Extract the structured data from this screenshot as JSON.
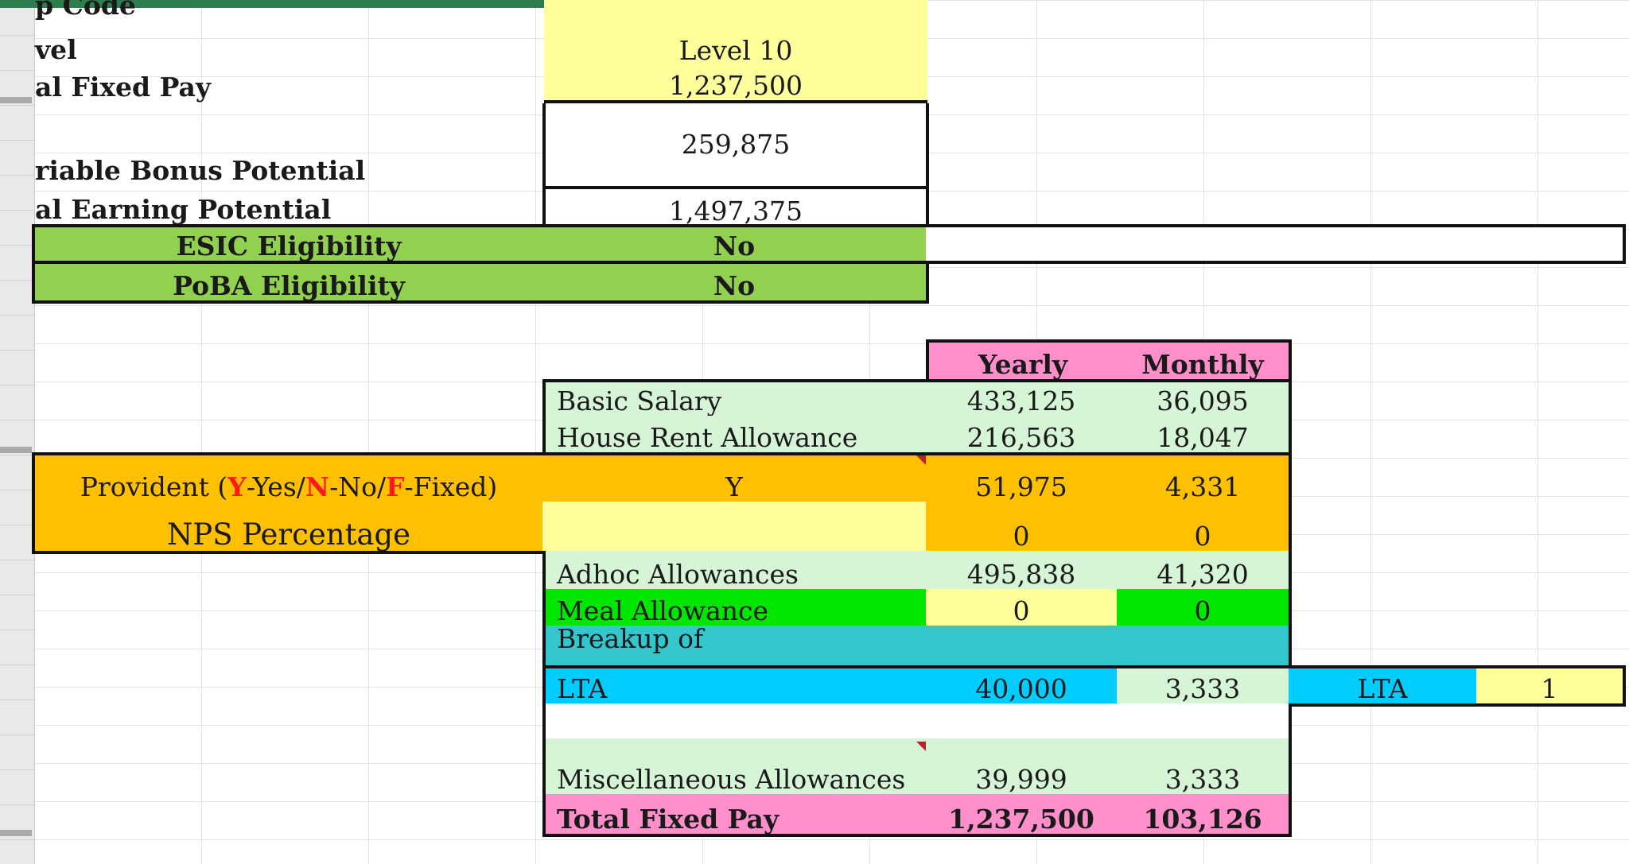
{
  "labels": {
    "grip_code": "p Code",
    "level": "vel",
    "total_fixed_pay": "al Fixed Pay",
    "variable_bonus": "riable Bonus Potential",
    "total_earning": "al Earning Potential"
  },
  "values": {
    "grip_code": "",
    "level": "Level 10",
    "total_fixed_pay": "1,237,500",
    "variable_bonus": "259,875",
    "total_earning": "1,497,375"
  },
  "eligibility": [
    {
      "label": "ESIC Eligibility",
      "value": "No"
    },
    {
      "label": "PoBA Eligibility",
      "value": "No"
    }
  ],
  "headers": {
    "yearly": "Yearly",
    "monthly": "Monthly"
  },
  "breakup": [
    {
      "label": "Basic Salary",
      "yearly": "433,125",
      "monthly": "36,095"
    },
    {
      "label": "House Rent Allowance",
      "yearly": "216,563",
      "monthly": "18,047"
    }
  ],
  "provident": {
    "prefix": "Provident (",
    "y": "Y",
    "y_text": "-Yes/",
    "n": "N",
    "n_text": "-No/",
    "f": "F",
    "f_text": "-Fixed)",
    "input": "Y",
    "yearly": "51,975",
    "monthly": "4,331"
  },
  "nps": {
    "label": "NPS Percentage",
    "input": "",
    "yearly": "0",
    "monthly": "0"
  },
  "adhoc": {
    "label": "Adhoc Allowances",
    "yearly": "495,838",
    "monthly": "41,320"
  },
  "meal": {
    "label": "Meal Allowance",
    "yearly": "0",
    "monthly": "0"
  },
  "breakup_of": {
    "label": "Breakup of"
  },
  "lta": {
    "label": "LTA",
    "yearly": "40,000",
    "monthly": "3,333",
    "side_label": "LTA",
    "side_value": "1"
  },
  "misc": {
    "label": "Miscellaneous Allowances",
    "yearly": "39,999",
    "monthly": "3,333"
  },
  "total": {
    "label": "Total Fixed Pay",
    "yearly": "1,237,500",
    "monthly": "103,126"
  },
  "colors": {
    "yellow": "#ffff9c",
    "light_green": "#d6f5d6",
    "green": "#92d050",
    "bright_green": "#00e600",
    "orange": "#ffc000",
    "teal": "#33c6cc",
    "cyan": "#00ccff",
    "pink": "#ff8fcb",
    "accent_red": "#ff1a1a"
  }
}
